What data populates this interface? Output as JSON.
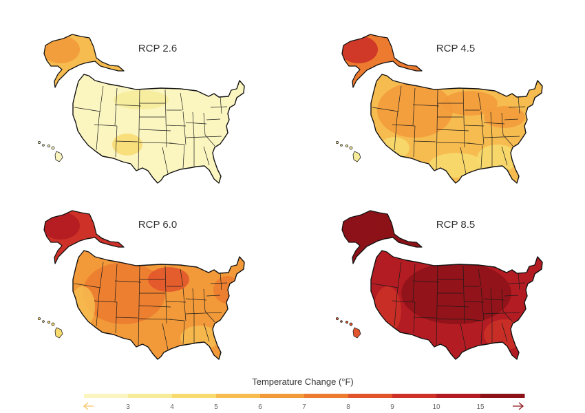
{
  "figure": {
    "panels": [
      {
        "title": "RCP 2.6",
        "level": 1
      },
      {
        "title": "RCP 4.5",
        "level": 2
      },
      {
        "title": "RCP 6.0",
        "level": 3
      },
      {
        "title": "RCP 8.5",
        "level": 4
      }
    ],
    "legend": {
      "title": "Temperature Change (°F)",
      "ticks": [
        "3",
        "4",
        "5",
        "6",
        "7",
        "8",
        "9",
        "10",
        "15"
      ],
      "colors": [
        "#fbf5c0",
        "#f6eb98",
        "#f7db6e",
        "#f7bc50",
        "#f29a3a",
        "#ec7a2f",
        "#e2542c",
        "#cd3127",
        "#b31c22",
        "#8c1218"
      ],
      "left_arrow_color": "#f7c465",
      "right_arrow_color": "#8c1218"
    }
  }
}
